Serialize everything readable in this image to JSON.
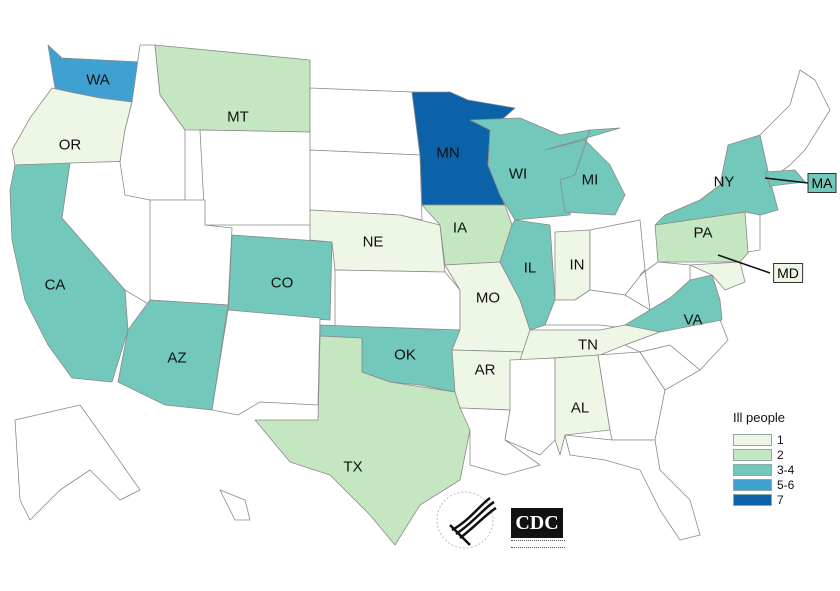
{
  "legend": {
    "title": "Ill people",
    "bins": [
      {
        "label": "1",
        "color": "#eef7e6"
      },
      {
        "label": "2",
        "color": "#c4e6c1"
      },
      {
        "label": "3-4",
        "color": "#72c8ba"
      },
      {
        "label": "5-6",
        "color": "#3fa0d2"
      },
      {
        "label": "7",
        "color": "#0b62a8"
      }
    ]
  },
  "no_case_color": "#ffffff",
  "states": [
    {
      "abbr": "WA",
      "ill_people": "5-6"
    },
    {
      "abbr": "OR",
      "ill_people": "1"
    },
    {
      "abbr": "CA",
      "ill_people": "3-4"
    },
    {
      "abbr": "MT",
      "ill_people": "2"
    },
    {
      "abbr": "AZ",
      "ill_people": "3-4"
    },
    {
      "abbr": "CO",
      "ill_people": "3-4"
    },
    {
      "abbr": "TX",
      "ill_people": "2"
    },
    {
      "abbr": "NE",
      "ill_people": "1"
    },
    {
      "abbr": "OK",
      "ill_people": "3-4"
    },
    {
      "abbr": "MN",
      "ill_people": "7"
    },
    {
      "abbr": "IA",
      "ill_people": "2"
    },
    {
      "abbr": "MO",
      "ill_people": "1"
    },
    {
      "abbr": "AR",
      "ill_people": "1"
    },
    {
      "abbr": "WI",
      "ill_people": "3-4"
    },
    {
      "abbr": "IL",
      "ill_people": "3-4"
    },
    {
      "abbr": "MI",
      "ill_people": "3-4"
    },
    {
      "abbr": "IN",
      "ill_people": "1"
    },
    {
      "abbr": "TN",
      "ill_people": "1"
    },
    {
      "abbr": "AL",
      "ill_people": "1"
    },
    {
      "abbr": "NY",
      "ill_people": "3-4"
    },
    {
      "abbr": "PA",
      "ill_people": "2"
    },
    {
      "abbr": "VA",
      "ill_people": "3-4"
    },
    {
      "abbr": "MA",
      "ill_people": "3-4"
    },
    {
      "abbr": "MD",
      "ill_people": "1"
    }
  ],
  "logos": {
    "cdc": "CDC",
    "hhs": "Department of Health & Human Services USA"
  }
}
